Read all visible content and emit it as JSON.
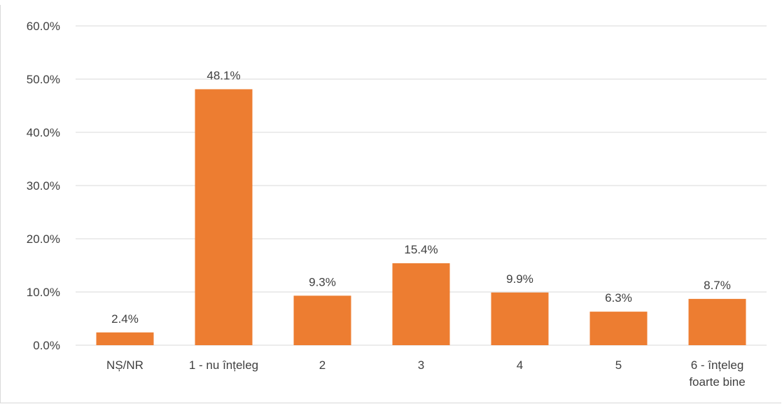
{
  "chart_data": {
    "type": "bar",
    "title": "",
    "xlabel": "",
    "ylabel": "",
    "categories": [
      [
        "NȘ/NR"
      ],
      [
        "1 - nu înțeleg"
      ],
      [
        "2"
      ],
      [
        "3"
      ],
      [
        "4"
      ],
      [
        "5"
      ],
      [
        "6 - înțeleg",
        "foarte bine"
      ]
    ],
    "values": [
      2.4,
      48.1,
      9.3,
      15.4,
      9.9,
      6.3,
      8.7
    ],
    "value_labels": [
      "2.4%",
      "48.1%",
      "9.3%",
      "15.4%",
      "9.9%",
      "6.3%",
      "8.7%"
    ],
    "ylim": [
      0,
      60
    ],
    "yticks": [
      0,
      10,
      20,
      30,
      40,
      50,
      60
    ],
    "ytick_labels": [
      "0.0%",
      "10.0%",
      "20.0%",
      "30.0%",
      "40.0%",
      "50.0%",
      "60.0%"
    ],
    "grid": true,
    "legend": "none",
    "colors": {
      "bar": "#ed7d31",
      "grid": "#d9d9d9",
      "text": "#404040"
    }
  }
}
